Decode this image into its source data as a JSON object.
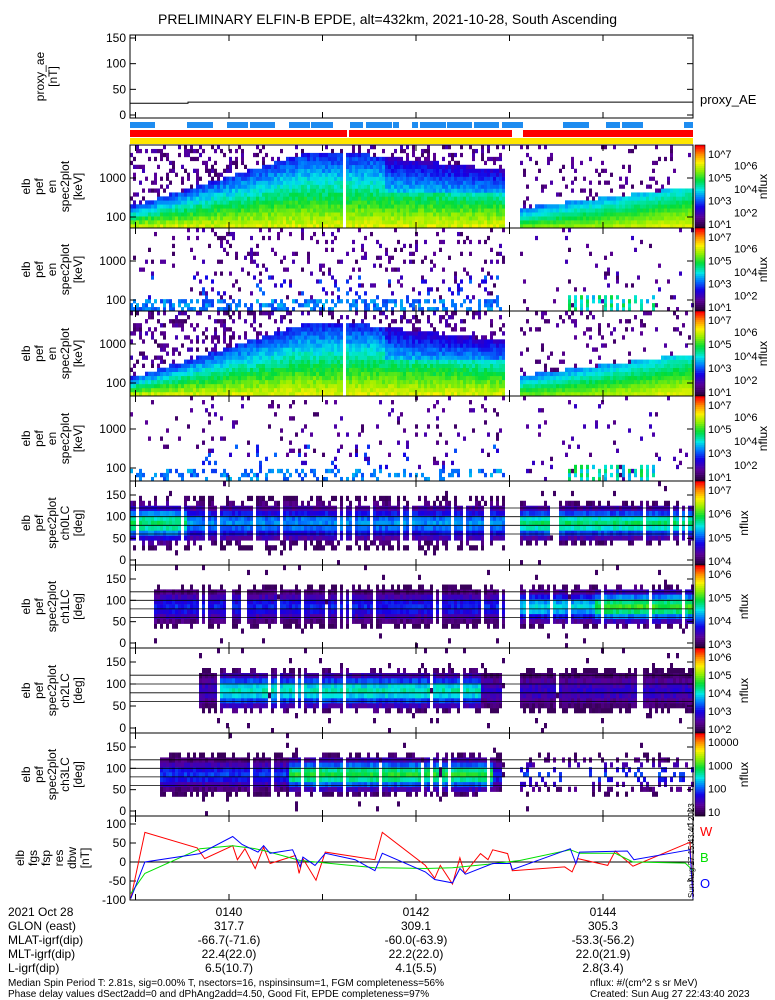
{
  "title": "PRELIMINARY ELFIN-B EPDE, alt=432km, 2021-10-28, South Ascending",
  "colors": {
    "blue_bar": "#1e8cf0",
    "red_bar": "#ff0000",
    "yellow_bar": "#ffe600",
    "line_red": "#ff0000",
    "line_green": "#00e000",
    "line_blue": "#0000ff"
  },
  "chart_data": [
    {
      "type": "line",
      "name": "proxy_ae",
      "ylabel_lines": [
        "proxy_ae",
        "[nT]"
      ],
      "yticks": [
        "150",
        "100",
        "50",
        "0"
      ],
      "ylim": [
        0,
        150
      ],
      "legend": "proxy_AE",
      "series": [
        {
          "name": "proxy_AE",
          "x_min": [
            0.9,
            1.9,
            1.9,
            7.0
          ],
          "values": [
            23,
            23,
            25,
            25
          ]
        }
      ]
    },
    {
      "type": "heatmap",
      "name": "spec-en-1",
      "ylabel_lines": [
        "elb",
        "pef",
        "en",
        "spec2plot",
        "[keV]"
      ],
      "yticks": [
        "1000",
        "100"
      ],
      "colorbar_label": "nflux",
      "colorbar_ticks": [
        "10^7",
        "10^6",
        "10^5",
        "10^4",
        "10^3",
        "10^2",
        "10^1"
      ]
    },
    {
      "type": "heatmap",
      "name": "spec-en-2",
      "ylabel_lines": [
        "elb",
        "pef",
        "en",
        "spec2plot",
        "[keV]"
      ],
      "yticks": [
        "1000",
        "100"
      ],
      "colorbar_label": "nflux",
      "colorbar_ticks": [
        "10^7",
        "10^6",
        "10^5",
        "10^4",
        "10^3",
        "10^2",
        "10^1"
      ]
    },
    {
      "type": "heatmap",
      "name": "spec-en-3",
      "ylabel_lines": [
        "elb",
        "pef",
        "en",
        "spec2plot",
        "[keV]"
      ],
      "yticks": [
        "1000",
        "100"
      ],
      "colorbar_label": "nflux",
      "colorbar_ticks": [
        "10^7",
        "10^6",
        "10^5",
        "10^4",
        "10^3",
        "10^2",
        "10^1"
      ]
    },
    {
      "type": "heatmap",
      "name": "spec-en-4",
      "ylabel_lines": [
        "elb",
        "pef",
        "en",
        "spec2plot",
        "[keV]"
      ],
      "yticks": [
        "1000",
        "100"
      ],
      "colorbar_label": "nflux",
      "colorbar_ticks": [
        "10^7",
        "10^6",
        "10^5",
        "10^4",
        "10^3",
        "10^2",
        "10^1"
      ]
    },
    {
      "type": "heatmap",
      "name": "spec-pa-ch0",
      "ylabel_lines": [
        "elb",
        "pef",
        "spec2plot",
        "ch0LC",
        "[deg]"
      ],
      "yticks": [
        "150",
        "100",
        "50",
        "0"
      ],
      "colorbar_label": "nflux",
      "colorbar_ticks": [
        "10^7",
        "10^6",
        "10^5",
        "10^4"
      ]
    },
    {
      "type": "heatmap",
      "name": "spec-pa-ch1",
      "ylabel_lines": [
        "elb",
        "pef",
        "spec2plot",
        "ch1LC",
        "[deg]"
      ],
      "yticks": [
        "150",
        "100",
        "50",
        "0"
      ],
      "colorbar_label": "nflux",
      "colorbar_ticks": [
        "10^6",
        "10^5",
        "10^4",
        "10^3"
      ]
    },
    {
      "type": "heatmap",
      "name": "spec-pa-ch2",
      "ylabel_lines": [
        "elb",
        "pef",
        "spec2plot",
        "ch2LC",
        "[deg]"
      ],
      "yticks": [
        "150",
        "100",
        "50",
        "0"
      ],
      "colorbar_label": "nflux",
      "colorbar_ticks": [
        "10^6",
        "10^5",
        "10^4",
        "10^3",
        "10^2"
      ]
    },
    {
      "type": "heatmap",
      "name": "spec-pa-ch3",
      "ylabel_lines": [
        "elb",
        "pef",
        "spec2plot",
        "ch3LC",
        "[deg]"
      ],
      "yticks": [
        "150",
        "100",
        "50",
        "0"
      ],
      "colorbar_label": "nflux",
      "colorbar_ticks": [
        "10000",
        "1000",
        "100",
        "10"
      ]
    },
    {
      "type": "line",
      "name": "fgs-res-dbw",
      "ylabel_lines": [
        "elb",
        "fgs",
        "fsp",
        "res",
        "dbw",
        "[nT]"
      ],
      "yticks": [
        "100",
        "50",
        "0",
        "-50",
        "-100"
      ],
      "ylim": [
        -100,
        100
      ],
      "legend_labels": [
        "W",
        "B",
        "O"
      ],
      "side_label": "Sun Aug 27 15:43:40 2023",
      "series": [
        {
          "name": "W",
          "color": "red",
          "x_min": [
            0.95,
            1.1,
            1.66,
            1.74,
            2.04,
            2.09,
            2.17,
            2.28,
            2.37,
            2.44,
            2.71,
            2.75,
            2.79,
            2.93,
            3.03,
            3.56,
            3.64,
            4.1,
            4.2,
            4.26,
            4.39,
            4.47,
            4.52,
            4.69,
            4.77,
            4.82,
            4.98,
            5.03,
            5.59,
            5.67,
            5.73,
            6.05,
            6.13,
            6.32,
            6.93,
            6.98
          ],
          "values": [
            -96,
            78,
            37,
            9,
            43,
            6,
            35,
            -17,
            39,
            -4,
            17,
            -30,
            9,
            -48,
            26,
            6,
            78,
            -9,
            -43,
            -9,
            -58,
            11,
            -30,
            22,
            6,
            32,
            22,
            -23,
            -13,
            -26,
            9,
            -9,
            29,
            -11,
            52,
            -96
          ]
        },
        {
          "name": "B",
          "color": "green",
          "x_min": [
            0.95,
            1.1,
            1.69,
            2.04,
            2.28,
            2.39,
            2.76,
            3.56,
            4.1,
            4.39,
            4.77,
            5.11,
            5.65,
            5.75,
            6.13,
            6.32,
            6.88,
            6.96
          ],
          "values": [
            -83,
            -30,
            35,
            43,
            35,
            29,
            4,
            -15,
            -17,
            -15,
            -6,
            4,
            32,
            23,
            23,
            0,
            -3,
            -22
          ]
        },
        {
          "name": "O",
          "color": "blue",
          "x_min": [
            0.95,
            1.1,
            1.69,
            2.04,
            2.14,
            2.31,
            2.37,
            2.44,
            2.68,
            2.76,
            2.79,
            2.92,
            3.03,
            3.35,
            3.56,
            3.64,
            4.1,
            4.2,
            4.39,
            4.47,
            4.53,
            4.82,
            5.01,
            5.03,
            5.65,
            5.71,
            5.75,
            6.26,
            6.33,
            6.93,
            6.97
          ],
          "values": [
            -96,
            0,
            22,
            67,
            46,
            26,
            43,
            23,
            32,
            -13,
            13,
            -9,
            23,
            6,
            -23,
            23,
            -26,
            -46,
            -55,
            -17,
            -32,
            -4,
            -4,
            -20,
            35,
            -4,
            26,
            29,
            6,
            32,
            -96
          ]
        }
      ]
    }
  ],
  "xaxis": {
    "row_labels": [
      "2021 Oct 28",
      "GLON (east)",
      "MLAT-igrf(dip)",
      "MLT-igrf(dip)",
      "L-igrf(dip)"
    ],
    "columns": [
      {
        "time": "0140",
        "glon": "317.7",
        "mlat": "-66.7(-71.6)",
        "mlt": "22.4(22.0)",
        "l": "6.5(10.7)"
      },
      {
        "time": "0142",
        "glon": "309.1",
        "mlat": "-60.0(-63.9)",
        "mlt": "22.2(22.0)",
        "l": "4.1(5.5)"
      },
      {
        "time": "0144",
        "glon": "305.3",
        "mlat": "-53.3(-56.2)",
        "mlt": "22.0(21.9)",
        "l": "2.8(3.4)"
      }
    ]
  },
  "footer": {
    "line1": "Median Spin Period T: 2.81s, sig=0.00% T, nsectors=16, nspinsinsum=1, FGM completeness=56%",
    "line2": "Phase delay values dSect2add=0 and dPhAng2add=4.50, Good Fit, EPDE completeness=97%",
    "units": "nflux: #/(cm^2 s sr MeV)",
    "created": "Created: Sun Aug 27 22:43:40 2023"
  }
}
